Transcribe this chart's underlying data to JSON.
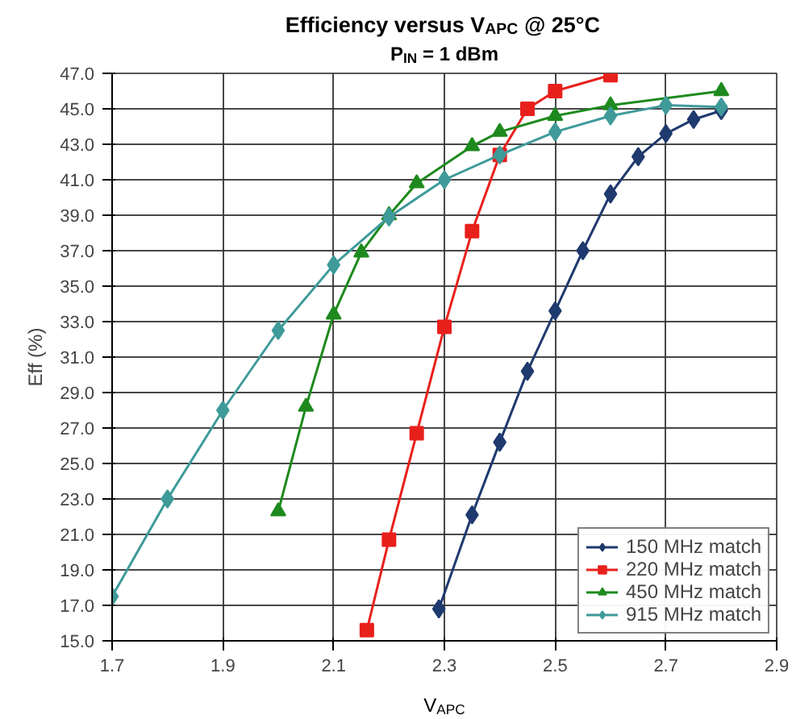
{
  "chart_data": {
    "type": "line",
    "title": "Efficiency versus V$_{APC}$ @ 25°C",
    "subtitle": "P$_{IN}$ = 1 dBm",
    "xlabel": "V$_{APC}$",
    "ylabel": "Eff (%)",
    "xlim": [
      1.7,
      2.9
    ],
    "ylim": [
      15,
      47
    ],
    "xticks": [
      1.7,
      1.9,
      2.1,
      2.3,
      2.5,
      2.7,
      2.9
    ],
    "yticks": [
      {
        "value": 15,
        "label": "15.0"
      },
      {
        "value": 17,
        "label": "17.0"
      },
      {
        "value": 19,
        "label": "19.0"
      },
      {
        "value": 21,
        "label": "21.0"
      },
      {
        "value": 23,
        "label": "23.0"
      },
      {
        "value": 25,
        "label": "25.0"
      },
      {
        "value": 27,
        "label": "27.0"
      },
      {
        "value": 29,
        "label": "29.0"
      },
      {
        "value": 31,
        "label": "31.0"
      },
      {
        "value": 33,
        "label": "33.0"
      },
      {
        "value": 35,
        "label": "35.0"
      },
      {
        "value": 37,
        "label": "37.0"
      },
      {
        "value": 39,
        "label": "39.0"
      },
      {
        "value": 41,
        "label": "41.0"
      },
      {
        "value": 43,
        "label": "43.0"
      },
      {
        "value": 45,
        "label": "45.0"
      },
      {
        "value": 47,
        "label": "47.0"
      }
    ],
    "grid": true,
    "legend": "bottom right",
    "line_style": "solid",
    "series": [
      {
        "name": "150 MHz match",
        "color": "#1f3a6e",
        "marker": "diamond",
        "x": [
          2.29,
          2.35,
          2.4,
          2.45,
          2.5,
          2.55,
          2.6,
          2.65,
          2.7,
          2.75,
          2.8
        ],
        "values": [
          16.8,
          22.1,
          26.2,
          30.2,
          33.6,
          37.0,
          40.2,
          42.3,
          43.6,
          44.4,
          44.9
        ]
      },
      {
        "name": "220 MHz match",
        "color": "#e8201c",
        "marker": "square",
        "x": [
          2.16,
          2.2,
          2.25,
          2.3,
          2.35,
          2.4,
          2.45,
          2.5,
          2.6
        ],
        "values": [
          15.6,
          20.7,
          26.7,
          32.7,
          38.1,
          42.4,
          45.0,
          46.0,
          46.9
        ]
      },
      {
        "name": "450 MHz match",
        "color": "#1e8a1e",
        "marker": "triangle",
        "x": [
          2.0,
          2.05,
          2.1,
          2.15,
          2.2,
          2.25,
          2.35,
          2.4,
          2.5,
          2.6,
          2.8
        ],
        "values": [
          22.3,
          28.2,
          33.4,
          36.9,
          39.0,
          40.8,
          42.9,
          43.7,
          44.6,
          45.2,
          46.0
        ]
      },
      {
        "name": "915 MHz match",
        "color": "#3f9a9a",
        "marker": "diamond",
        "x": [
          1.7,
          1.8,
          1.9,
          2.0,
          2.1,
          2.2,
          2.3,
          2.4,
          2.5,
          2.6,
          2.7,
          2.8
        ],
        "values": [
          17.5,
          23.0,
          28.0,
          32.5,
          36.2,
          38.9,
          41.0,
          42.4,
          43.7,
          44.6,
          45.2,
          45.1
        ]
      }
    ]
  }
}
